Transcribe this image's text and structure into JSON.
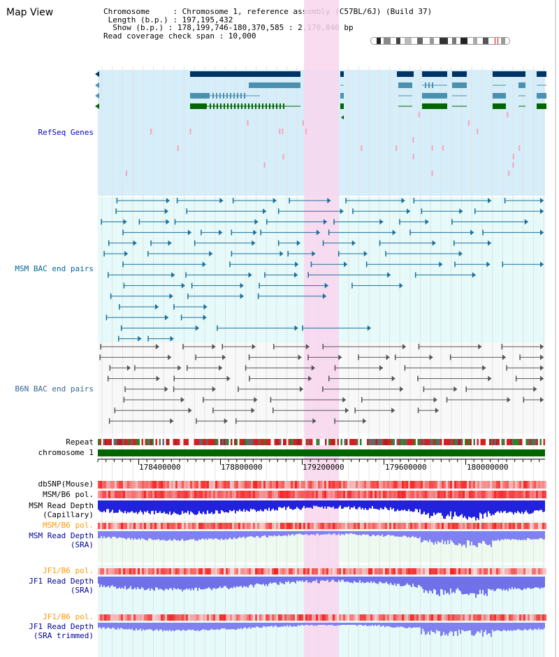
{
  "title": "Map View",
  "info": {
    "chromosome": "Chromosome     : Chromosome 1, reference assembly (C57BL/6J) (Build 37)",
    "length": " Length (b.p.) : 197,195,432",
    "show": "  Show (b.p.) : 178,199,746-180,370,585 : 2,170,840 bp",
    "coverage": "Read coverage check span : 10,000"
  },
  "ideogram": {
    "selected_color": "#e00000"
  },
  "tracks": {
    "refseq": {
      "label": "RefSeq Genes",
      "color": "#0000cc"
    },
    "msm_bac": {
      "label": "MSM BAC end pairs",
      "color": "#006699"
    },
    "b6n_bac": {
      "label": "B6N BAC end pairs",
      "color": "#336699"
    },
    "repeat": {
      "label": "Repeat"
    },
    "chromosome": {
      "label": "chromosome 1"
    },
    "dbsnp": {
      "label": "dbSNP(Mouse)"
    },
    "msm_b6_pol_1": {
      "label": "MSM/B6 pol."
    },
    "msm_depth_cap": {
      "label": "MSM Read Depth\n(Capillary)"
    },
    "msm_b6_pol_2": {
      "label": "MSM/B6 pol."
    },
    "msm_depth_sra": {
      "label": "MSM Read Depth\n(SRA)"
    },
    "jf1_b6_pol_1": {
      "label": "JF1/B6 pol."
    },
    "jf1_depth_sra": {
      "label": "JF1 Read Depth\n(SRA)"
    },
    "jf1_b6_pol_2": {
      "label": "JF1/B6 pol."
    },
    "jf1_depth_trim": {
      "label": "JF1 Read Depth\n(SRA trimmed)"
    }
  },
  "axis": {
    "ticks": [
      "178400000",
      "178800000",
      "179200000",
      "179600000",
      "180000000"
    ]
  },
  "colors": {
    "refseq_bg": "#d6eef9",
    "msm_bac_bg": "#e6fafa",
    "highlight": "#f9d6ef",
    "gene_dark": "#003366",
    "gene_mid": "#4a90b0",
    "gene_green": "#006600",
    "pol_orange": "#ff9900",
    "depth_blue": "#000099"
  }
}
